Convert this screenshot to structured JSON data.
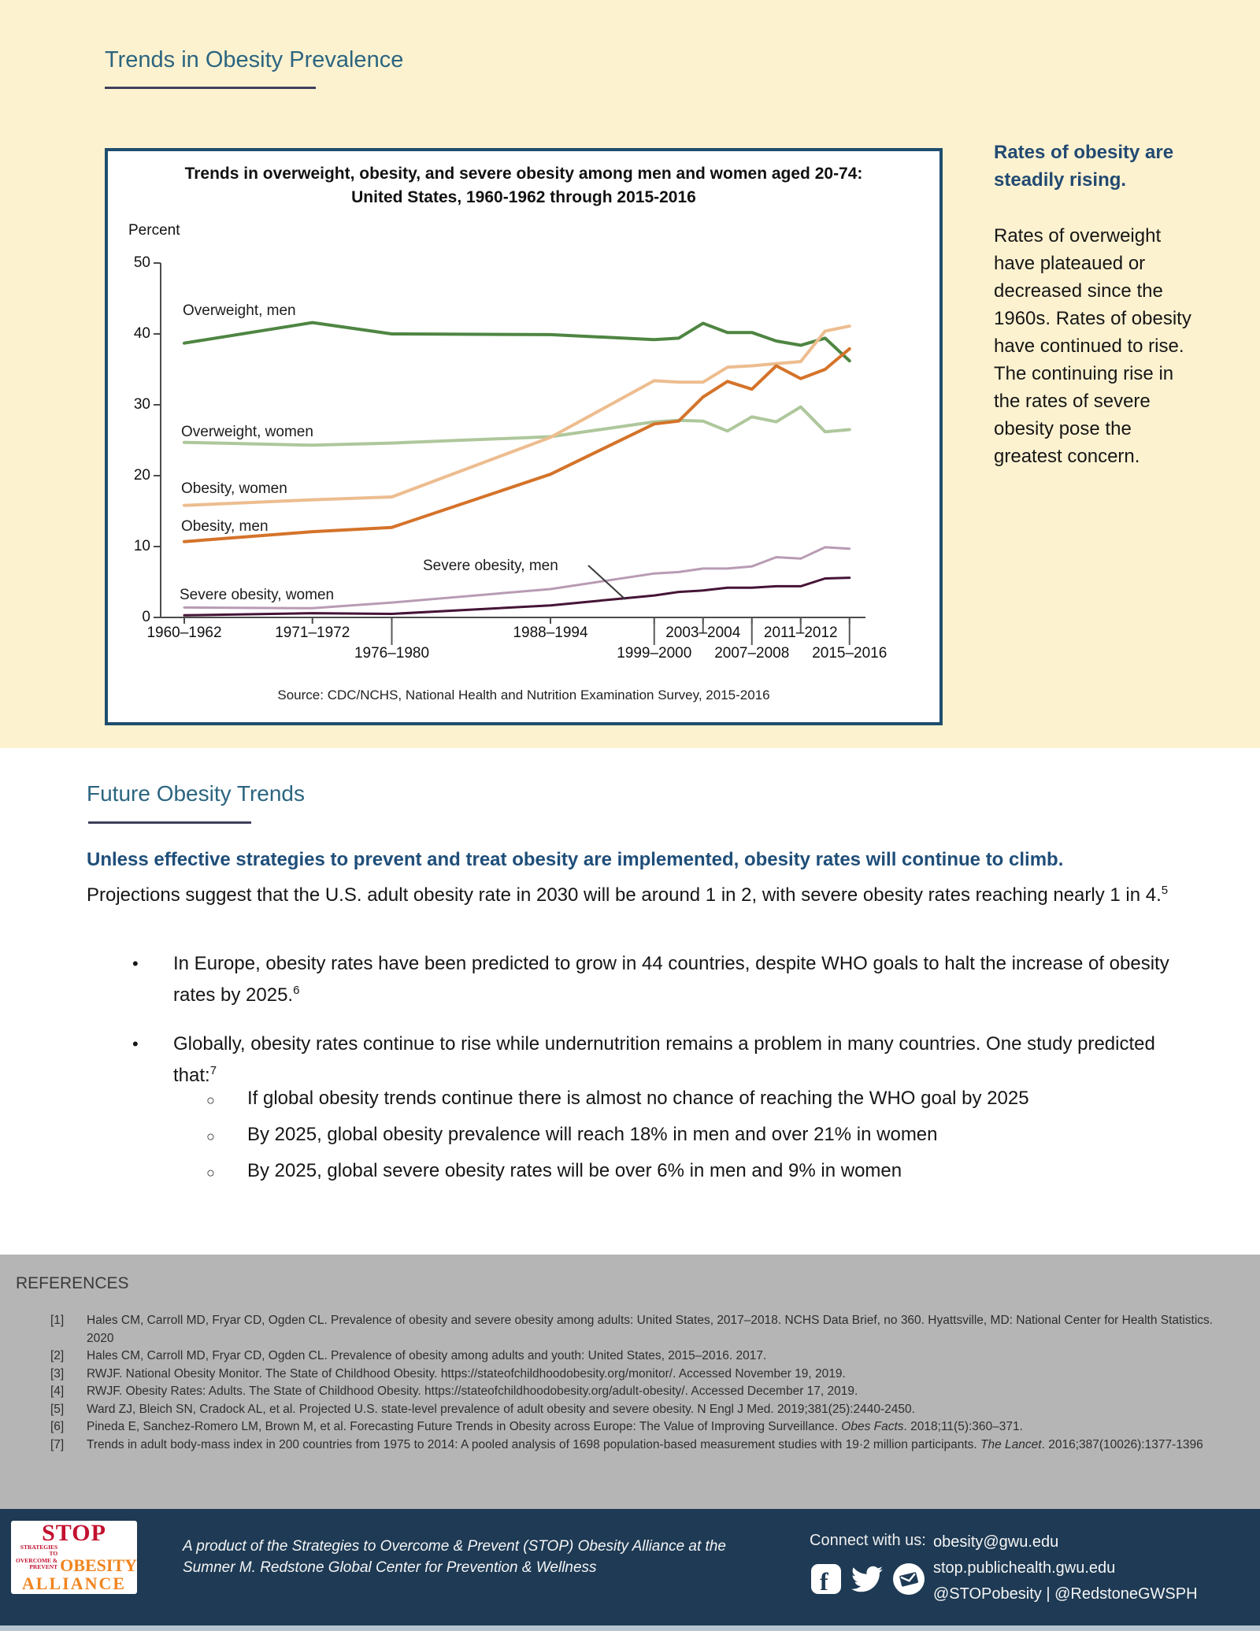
{
  "header": {
    "title": "Trends in Obesity Prevalence"
  },
  "chart_data": {
    "type": "line",
    "title_line1": "Trends in overweight, obesity, and severe obesity among men and women aged 20-74:",
    "title_line2": "United States, 1960-1962 through 2015-2016",
    "ylabel": "Percent",
    "ylim": [
      0,
      50
    ],
    "yticks": [
      0,
      10,
      20,
      30,
      40,
      50
    ],
    "grid": false,
    "legend_position": "inline-labels",
    "source": "Source: CDC/NCHS, National Health and Nutrition Examination Survey, 2015-2016",
    "x_years": [
      1961,
      1971.5,
      1978,
      1991,
      1999.5,
      2001.5,
      2003.5,
      2005.5,
      2007.5,
      2009.5,
      2011.5,
      2013.5,
      2015.5
    ],
    "x_periods": [
      {
        "label": "1960–1962",
        "year": 1961,
        "row": 1,
        "bar": "none"
      },
      {
        "label": "1971–1972",
        "year": 1971.5,
        "row": 1,
        "bar": "none"
      },
      {
        "label": "1976–1980",
        "year": 1978,
        "row": 2,
        "bar": "long"
      },
      {
        "label": "1988–1994",
        "year": 1991,
        "row": 1,
        "bar": "none"
      },
      {
        "label": "1999–2000",
        "year": 1999.5,
        "row": 2,
        "bar": "long"
      },
      {
        "label": "2003–2004",
        "year": 2003.5,
        "row": 1,
        "bar": "short"
      },
      {
        "label": "2007–2008",
        "year": 2007.5,
        "row": 2,
        "bar": "long"
      },
      {
        "label": "2011–2012",
        "year": 2011.5,
        "row": 1,
        "bar": "short"
      },
      {
        "label": "2015–2016",
        "year": 2015.5,
        "row": 2,
        "bar": "long"
      }
    ],
    "series": [
      {
        "label": "Overweight, men",
        "color": "#4e8542",
        "width": 4,
        "values": [
          38.7,
          41.6,
          40.0,
          39.9,
          39.2,
          39.4,
          41.5,
          40.2,
          40.2,
          39.0,
          38.4,
          39.4,
          36.2
        ]
      },
      {
        "label": "Overweight, women",
        "color": "#aec79c",
        "width": 4,
        "values": [
          24.7,
          24.3,
          24.6,
          25.5,
          27.6,
          27.8,
          27.7,
          26.3,
          28.3,
          27.6,
          29.7,
          26.2,
          26.5
        ]
      },
      {
        "label": "Obesity, women",
        "color": "#edbd8f",
        "width": 4,
        "values": [
          15.8,
          16.6,
          17.0,
          25.4,
          33.4,
          33.2,
          33.2,
          35.3,
          35.5,
          35.8,
          36.1,
          40.4,
          41.1
        ]
      },
      {
        "label": "Obesity, men",
        "color": "#d4732a",
        "width": 4,
        "values": [
          10.7,
          12.1,
          12.7,
          20.2,
          27.3,
          27.7,
          31.1,
          33.3,
          32.2,
          35.5,
          33.7,
          35.0,
          37.9
        ]
      },
      {
        "label": "Severe obesity, men",
        "color": "#451436",
        "width": 3,
        "values": [
          0.3,
          0.6,
          0.5,
          1.7,
          3.1,
          3.6,
          3.8,
          4.2,
          4.2,
          4.4,
          4.4,
          5.5,
          5.6
        ]
      },
      {
        "label": "Severe obesity, women",
        "color": "#b89bb4",
        "width": 3,
        "values": [
          1.4,
          1.3,
          2.1,
          4.0,
          6.2,
          6.4,
          6.9,
          6.9,
          7.2,
          8.5,
          8.3,
          9.9,
          9.7
        ]
      }
    ]
  },
  "sidebar": {
    "heading": "Rates of obesity are steadily rising.",
    "body": "Rates of overweight have plateaued or decreased since the 1960s. Rates of obesity have continued to rise. The continuing rise in the rates of severe obesity pose the greatest concern."
  },
  "future": {
    "title": "Future Obesity Trends",
    "lead_bold": "Unless effective strategies to prevent and treat obesity are implemented, obesity rates will continue to climb.",
    "lead_text": "Projections suggest that the U.S. adult obesity rate in 2030 will be around 1 in 2, with severe obesity rates reaching nearly 1 in 4.",
    "lead_sup": "5",
    "bullet_marker": "•",
    "sub_marker": "○",
    "bullets": [
      {
        "text": "In Europe, obesity rates have been predicted to grow in 44 countries, despite WHO goals to halt the increase of obesity rates by 2025.",
        "sup": "6"
      },
      {
        "text": "Globally, obesity rates continue to rise while undernutrition remains a problem in many countries. One study predicted that:",
        "sup": "7"
      }
    ],
    "sub_bullets": [
      "If global obesity trends continue there is almost no chance of reaching the WHO goal by 2025",
      "By 2025, global obesity prevalence will reach 18% in men and over 21% in women",
      "By 2025, global severe obesity rates will be over 6% in men and 9% in women"
    ]
  },
  "references": {
    "title": "REFERENCES",
    "items": [
      {
        "num": "[1]",
        "pre": "Hales CM, Carroll MD, Fryar CD, Ogden CL. Prevalence of obesity and severe obesity among adults: United States, 2017–2018. NCHS Data Brief, no 360. Hyattsville, MD: National Center for Health Statistics. 2020",
        "italic": "",
        "post": ""
      },
      {
        "num": "[2]",
        "pre": "Hales CM, Carroll MD, Fryar CD, Ogden CL. Prevalence of obesity among adults and youth: United States, 2015–2016. 2017.",
        "italic": "",
        "post": ""
      },
      {
        "num": "[3]",
        "pre": "RWJF. National Obesity Monitor. The State of Childhood Obesity. https://stateofchildhoodobesity.org/monitor/. Accessed November 19, 2019.",
        "italic": "",
        "post": ""
      },
      {
        "num": "[4]",
        "pre": "RWJF. Obesity Rates: Adults. The State of Childhood Obesity. https://stateofchildhoodobesity.org/adult-obesity/. Accessed December 17, 2019.",
        "italic": "",
        "post": ""
      },
      {
        "num": "[5]",
        "pre": "Ward ZJ, Bleich SN, Cradock AL, et al. Projected U.S. state-level prevalence of adult obesity and severe obesity. N Engl J Med. 2019;381(25):2440-2450.",
        "italic": "",
        "post": ""
      },
      {
        "num": "[6]",
        "pre": "Pineda E, Sanchez-Romero LM, Brown M, et al. Forecasting Future Trends in Obesity across Europe: The Value of Improving Surveillance. ",
        "italic": "Obes Facts",
        "post": ". 2018;11(5):360–371."
      },
      {
        "num": "[7]",
        "pre": "Trends in adult body-mass index in 200 countries from 1975 to 2014: A pooled analysis of 1698 population-based measurement studies with 19·2 million participants. ",
        "italic": "The Lancet",
        "post": ". 2016;387(10026):1377-1396"
      }
    ]
  },
  "footer": {
    "logo": {
      "stop": "STOP",
      "small1": "STRATEGIES TO",
      "small2": "OVERCOME & PREVENT",
      "obesity": "OBESITY",
      "alliance": "ALLIANCE"
    },
    "product_line1": "A product of the Strategies to Overcome & Prevent (STOP) Obesity Alliance at the",
    "product_line2": "Sumner M. Redstone Global Center for Prevention & Wellness",
    "connect_label": "Connect with us:",
    "contact_lines": [
      "obesity@gwu.edu",
      "stop.publichealth.gwu.edu",
      "@STOPobesity | @RedstoneGWSPH"
    ],
    "icons": [
      "facebook-icon",
      "twitter-icon",
      "email-icon"
    ]
  },
  "colors": {
    "cream_bg": "#fdf2d0",
    "heading_blue": "#2b6580",
    "underline": "#3f3f5a",
    "lead_navy": "#1f4e79",
    "sidebar_navy": "#224a72",
    "chart_border": "#1f4e6e",
    "refs_bg": "#b5b5b5",
    "footer_navy": "#1e3a54",
    "logo_red": "#c3112f",
    "logo_orange": "#f0841f"
  }
}
